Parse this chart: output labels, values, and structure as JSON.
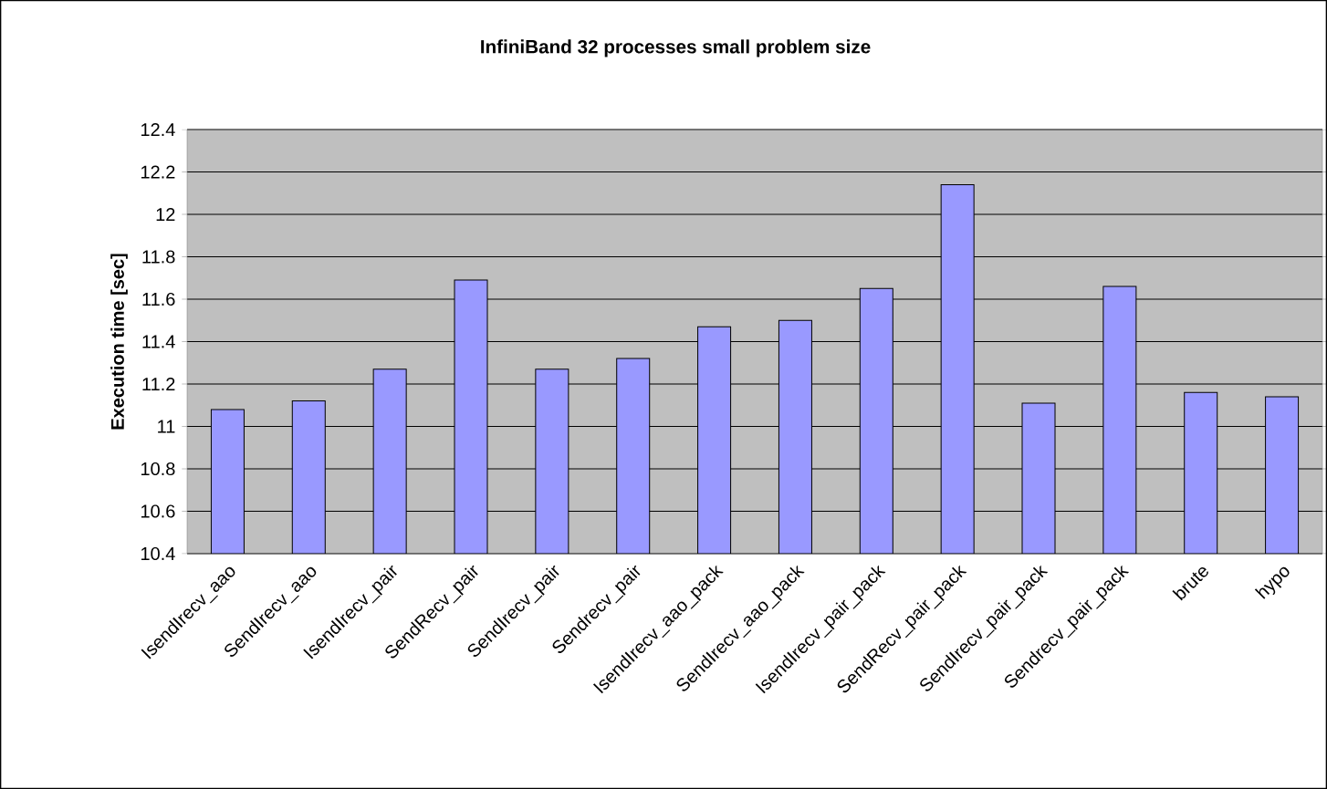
{
  "chart_data": {
    "type": "bar",
    "title": "InfiniBand 32 processes small problem size",
    "ylabel": "Execution time [sec]",
    "categories": [
      "IsendIrecv_aao",
      "SendIrecv_aao",
      "IsendIrecv_pair",
      "SendRecv_pair",
      "SendIrecv_pair",
      "Sendrecv_pair",
      "IsendIrecv_aao_pack",
      "SendIrecv_aao_pack",
      "IsendIrecv_pair_pack",
      "SendRecv_pair_pack",
      "SendIrecv_pair_pack",
      "Sendrecv_pair_pack",
      "brute",
      "hypo"
    ],
    "values": [
      11.08,
      11.12,
      11.27,
      11.69,
      11.27,
      11.32,
      11.47,
      11.5,
      11.65,
      12.14,
      11.11,
      11.66,
      11.16,
      11.14
    ],
    "color": "#9999ff",
    "ylim": [
      10.4,
      12.4
    ],
    "yticks": [
      {
        "value": 10.4,
        "label": "10.4"
      },
      {
        "value": 10.6,
        "label": "10.6"
      },
      {
        "value": 10.8,
        "label": "10.8"
      },
      {
        "value": 11,
        "label": "11"
      },
      {
        "value": 11.2,
        "label": "11.2"
      },
      {
        "value": 11.4,
        "label": "11.4"
      },
      {
        "value": 11.6,
        "label": "11.6"
      },
      {
        "value": 11.8,
        "label": "11.8"
      },
      {
        "value": 12,
        "label": "12"
      },
      {
        "value": 12.2,
        "label": "12.2"
      },
      {
        "value": 12.4,
        "label": "12.4"
      }
    ],
    "grid": "y"
  }
}
